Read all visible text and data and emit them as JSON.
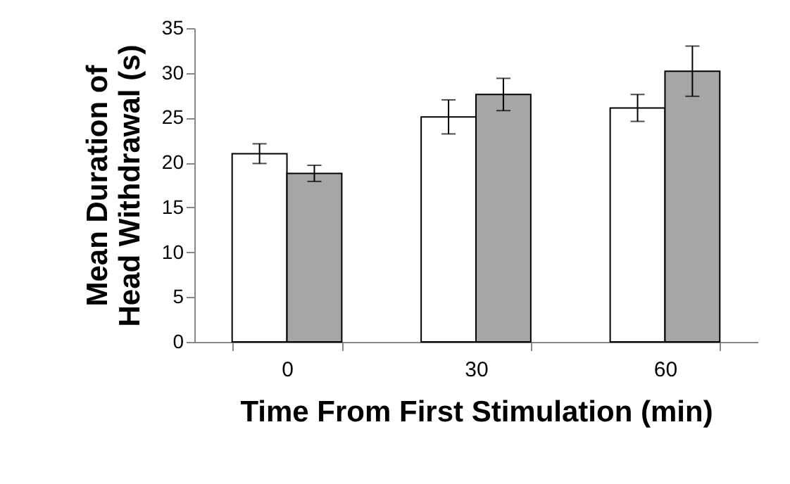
{
  "chart_data": {
    "type": "bar",
    "xlabel": "Time From First Stimulation (min)",
    "ylabel": "Mean Duration of Head Withdrawal (s)",
    "categories": [
      "0",
      "30",
      "60"
    ],
    "series": [
      {
        "color": "#ffffff",
        "values": [
          21,
          25.1,
          26.1
        ],
        "errors": [
          1.1,
          1.9,
          1.5
        ]
      },
      {
        "color": "#a6a6a6",
        "values": [
          18.8,
          27.6,
          30.2
        ],
        "errors": [
          0.9,
          1.8,
          2.8
        ]
      }
    ],
    "ylim": [
      0,
      35
    ],
    "yticks": [
      0,
      5,
      10,
      15,
      20,
      25,
      30,
      35
    ],
    "grid": false,
    "legend": false
  }
}
